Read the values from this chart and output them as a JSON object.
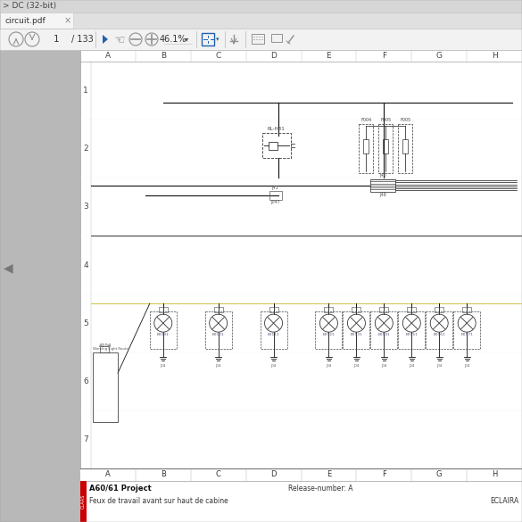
{
  "bg_color": "#e8e8e8",
  "title_bar_color": "#e0e0e0",
  "tab_text": "circuit.pdf",
  "page_text": "1  / 133",
  "zoom_text": "46.1%",
  "col_labels": [
    "A",
    "B",
    "C",
    "D",
    "E",
    "F",
    "G",
    "H"
  ],
  "row_labels": [
    "1",
    "2",
    "3",
    "4",
    "5",
    "6",
    "7"
  ],
  "title_bar_text": "> DC (32-bit)",
  "footer_project": "A60/61 Project",
  "footer_release": "Release-number: A",
  "footer_desc": "Feux de travail avant sur haut de cabine",
  "footer_right": "ECLAIRA",
  "claas_color": "#cc0000",
  "sidebar_color": "#b8b8b8",
  "schematic_bg": "#ffffff",
  "line_color": "#111111",
  "wire_color": "#333333"
}
